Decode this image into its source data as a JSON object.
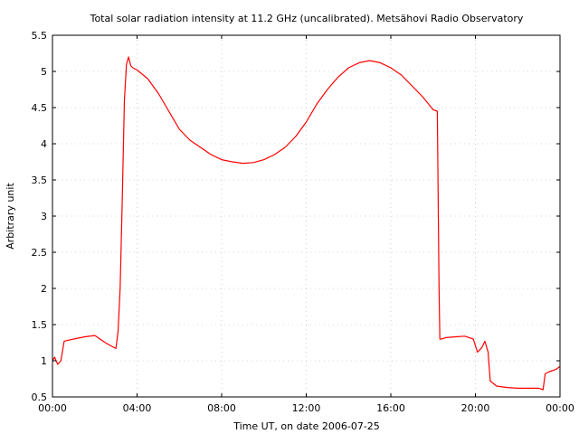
{
  "chart_data": {
    "type": "line",
    "title": "Total solar radiation intensity at 11.2 GHz (uncalibrated). Metsähovi Radio Observatory",
    "xlabel": "Time UT, on date 2006-07-25",
    "ylabel": "Arbitrary unit",
    "xlim": [
      "00:00",
      "24:00"
    ],
    "ylim": [
      0.5,
      5.5
    ],
    "x_ticks": [
      "00:00",
      "04:00",
      "08:00",
      "12:00",
      "16:00",
      "20:00",
      "00:00"
    ],
    "y_ticks": [
      "0.5",
      "1",
      "1.5",
      "2",
      "2.5",
      "3",
      "3.5",
      "4",
      "4.5",
      "5",
      "5.5"
    ],
    "grid": true,
    "series_color": "#ff0000",
    "x_units": "hours UT",
    "series": [
      {
        "x": [
          0.0,
          0.1,
          0.25,
          0.4,
          0.55,
          0.7,
          1.0,
          1.5,
          2.0,
          2.5,
          2.8,
          3.0,
          3.1,
          3.2,
          3.3,
          3.4,
          3.5,
          3.6,
          3.7,
          3.8,
          4.0,
          4.5,
          5.0,
          5.5,
          6.0,
          6.5,
          7.0,
          7.5,
          8.0,
          8.5,
          9.0,
          9.5,
          10.0,
          10.5,
          11.0,
          11.5,
          12.0,
          12.5,
          13.0,
          13.5,
          14.0,
          14.5,
          15.0,
          15.5,
          16.0,
          16.5,
          17.0,
          17.5,
          18.0,
          18.2,
          18.28,
          18.32,
          18.4,
          18.6,
          19.0,
          19.5,
          19.9,
          20.1,
          20.3,
          20.45,
          20.6,
          20.7,
          21.0,
          21.5,
          22.0,
          22.5,
          23.0,
          23.1,
          23.2,
          23.3,
          23.5,
          23.8,
          24.0
        ],
        "y": [
          1.0,
          1.05,
          0.95,
          1.0,
          1.27,
          1.28,
          1.3,
          1.33,
          1.35,
          1.25,
          1.2,
          1.17,
          1.4,
          2.0,
          3.2,
          4.6,
          5.1,
          5.2,
          5.08,
          5.05,
          5.02,
          4.9,
          4.7,
          4.45,
          4.2,
          4.05,
          3.95,
          3.85,
          3.78,
          3.75,
          3.73,
          3.74,
          3.78,
          3.85,
          3.95,
          4.1,
          4.3,
          4.55,
          4.75,
          4.92,
          5.05,
          5.12,
          5.15,
          5.12,
          5.05,
          4.95,
          4.8,
          4.65,
          4.47,
          4.45,
          2.0,
          1.3,
          1.3,
          1.32,
          1.33,
          1.34,
          1.3,
          1.12,
          1.18,
          1.27,
          1.12,
          0.72,
          0.65,
          0.63,
          0.62,
          0.62,
          0.62,
          0.61,
          0.6,
          0.82,
          0.85,
          0.88,
          0.92
        ]
      }
    ]
  }
}
